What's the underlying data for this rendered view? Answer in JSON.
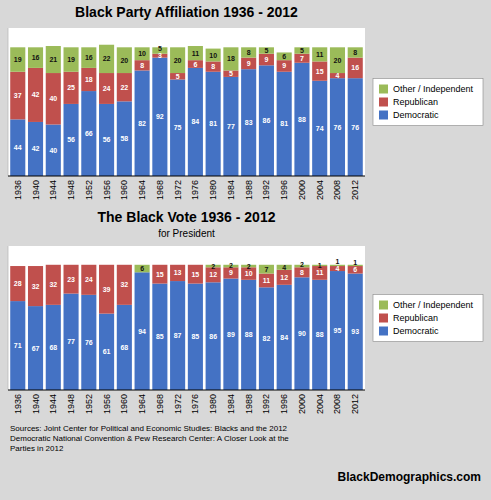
{
  "chart_data": [
    {
      "type": "bar",
      "stacked": true,
      "title": "Black Party Affiliation 1936 - 2012",
      "categories": [
        "1936",
        "1940",
        "1944",
        "1948",
        "1952",
        "1956",
        "1960",
        "1964",
        "1968",
        "1972",
        "1976",
        "1980",
        "1984",
        "1988",
        "1992",
        "1996",
        "2000",
        "2004",
        "2008",
        "2012"
      ],
      "series": [
        {
          "name": "Democratic",
          "color": "#4472C4",
          "values": [
            44,
            42,
            40,
            56,
            66,
            56,
            58,
            82,
            92,
            75,
            84,
            81,
            77,
            83,
            86,
            81,
            88,
            74,
            76,
            76
          ]
        },
        {
          "name": "Republican",
          "color": "#C0504D",
          "values": [
            37,
            42,
            40,
            25,
            18,
            24,
            22,
            8,
            3,
            5,
            6,
            8,
            5,
            9,
            9,
            9,
            7,
            15,
            4,
            16
          ]
        },
        {
          "name": "Other / Independent",
          "color": "#9BBB59",
          "values": [
            19,
            16,
            21,
            19,
            16,
            22,
            20,
            10,
            5,
            20,
            11,
            10,
            18,
            8,
            5,
            6,
            5,
            11,
            20,
            8
          ]
        }
      ],
      "ylim": [
        0,
        115
      ],
      "yticks": [],
      "tick_labels": "x",
      "grid": false,
      "legend": "right",
      "data_labels": true
    },
    {
      "type": "bar",
      "stacked": true,
      "title": "The Black Vote 1936 - 2012",
      "subtitle": "for President",
      "categories": [
        "1936",
        "1940",
        "1944",
        "1948",
        "1952",
        "1956",
        "1960",
        "1964",
        "1968",
        "1972",
        "1976",
        "1980",
        "1984",
        "1988",
        "1992",
        "1996",
        "2000",
        "2004",
        "2008",
        "2012"
      ],
      "series": [
        {
          "name": "Democratic",
          "color": "#4472C4",
          "values": [
            71,
            67,
            68,
            77,
            76,
            61,
            68,
            94,
            85,
            87,
            85,
            86,
            89,
            88,
            82,
            84,
            90,
            88,
            95,
            93
          ]
        },
        {
          "name": "Republican",
          "color": "#C0504D",
          "values": [
            28,
            32,
            32,
            23,
            24,
            39,
            32,
            0,
            15,
            13,
            15,
            12,
            9,
            10,
            11,
            12,
            8,
            11,
            4,
            6
          ]
        },
        {
          "name": "Other / Independent",
          "color": "#9BBB59",
          "values": [
            0,
            0,
            0,
            0,
            0,
            0,
            0,
            6,
            0,
            0,
            0,
            2,
            2,
            2,
            7,
            4,
            2,
            1,
            1,
            1
          ]
        }
      ],
      "ylim": [
        0,
        115
      ],
      "yticks": [],
      "tick_labels": "x",
      "grid": false,
      "legend": "right",
      "data_labels": true
    }
  ],
  "source": "Sources: Joint Center for Political and Economic Studies: Blacks and the 2012\nDemocratic National Convention & Pew Research Center: A Closer Look at the\nParties in 2012",
  "brand": "BlackDemographics.com"
}
